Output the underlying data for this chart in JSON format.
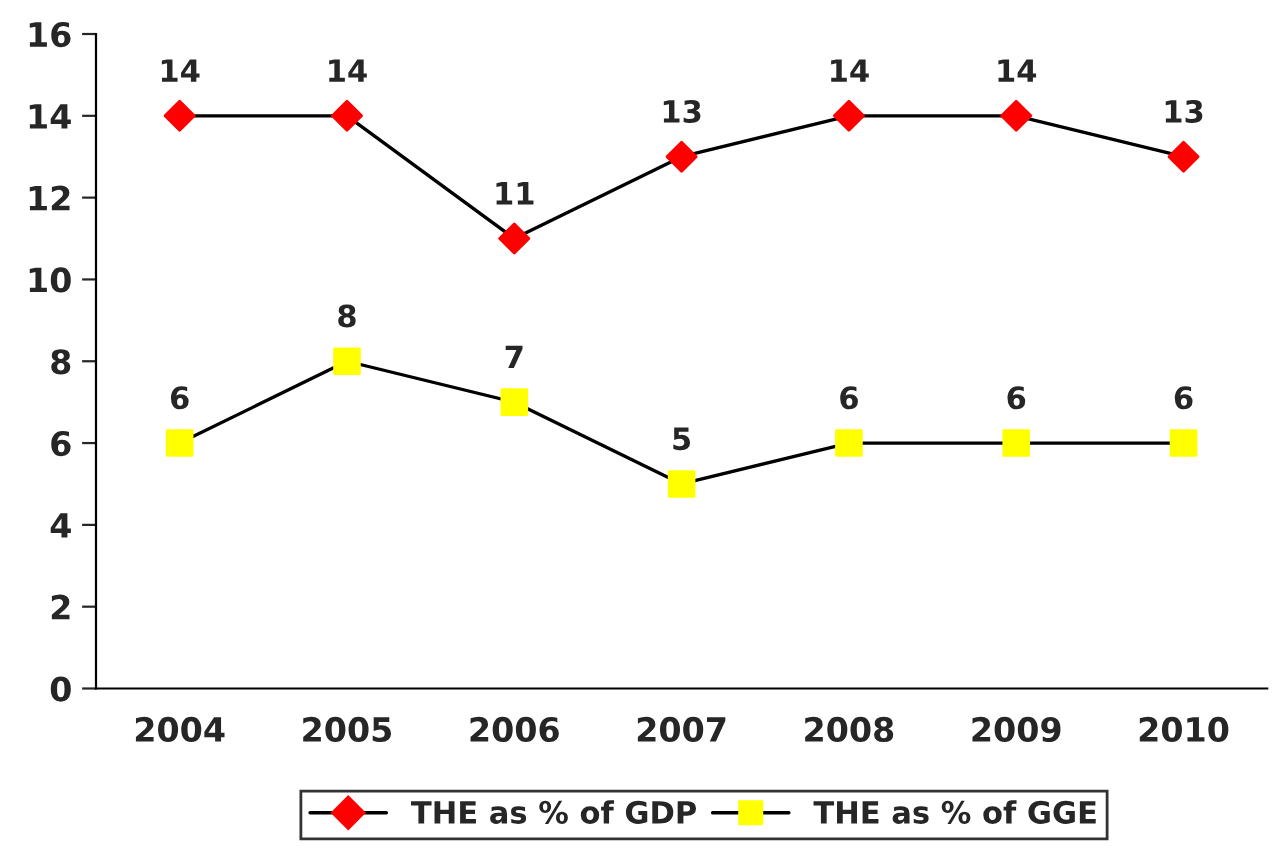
{
  "chart_data": {
    "type": "line",
    "categories": [
      "2004",
      "2005",
      "2006",
      "2007",
      "2008",
      "2009",
      "2010"
    ],
    "series": [
      {
        "name": "THE as % of GDP",
        "color": "#ff0000",
        "marker": "diamond",
        "values": [
          14,
          14,
          11,
          13,
          14,
          14,
          13
        ]
      },
      {
        "name": "THE as % of GGE",
        "color": "#ffff00",
        "marker": "square",
        "values": [
          6,
          8,
          7,
          5,
          6,
          6,
          6
        ]
      }
    ],
    "ylim": [
      0,
      16
    ],
    "yticks": [
      0,
      2,
      4,
      6,
      8,
      10,
      12,
      14,
      16
    ],
    "grid": false,
    "legend": "bottom",
    "data_labels": true,
    "line_style": "solid"
  }
}
